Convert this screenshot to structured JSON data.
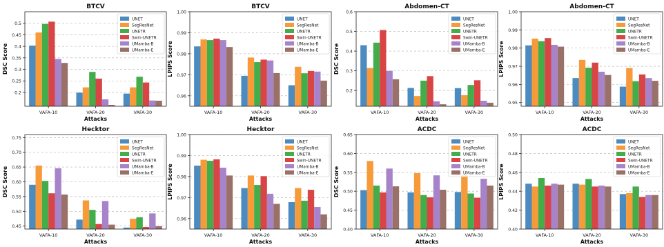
{
  "legend_labels": [
    "UNET",
    "SegResNet",
    "UNETR",
    "Swin-UNETR",
    "UMamba-B",
    "UMamba-E"
  ],
  "series_colors": [
    "#4c8bc0",
    "#f79a3a",
    "#43ad4b",
    "#d94545",
    "#a784c9",
    "#9a7168"
  ],
  "chart_data": [
    {
      "type": "bar",
      "title": "BTCV",
      "xlabel": "Attacks",
      "ylabel": "DSC Score",
      "categories": [
        "VAFA-10",
        "VAFA-20",
        "VAFA-30"
      ],
      "ylim": [
        0.14,
        0.55
      ],
      "yticks": [
        0.2,
        0.25,
        0.3,
        0.35,
        0.4,
        0.45,
        0.5
      ],
      "ytick_labels": [
        "0.2",
        "0.25",
        "0.3",
        "0.35",
        "0.4",
        "0.45",
        "0.5"
      ],
      "grid": true,
      "legend": "top-right",
      "series": [
        {
          "name": "UNET",
          "values": [
            0.403,
            0.199,
            0.195
          ]
        },
        {
          "name": "SegResNet",
          "values": [
            0.46,
            0.222,
            0.222
          ]
        },
        {
          "name": "UNETR",
          "values": [
            0.497,
            0.289,
            0.268
          ]
        },
        {
          "name": "Swin-UNETR",
          "values": [
            0.507,
            0.26,
            0.243
          ]
        },
        {
          "name": "UMamba-B",
          "values": [
            0.345,
            0.17,
            0.165
          ]
        },
        {
          "name": "UMamba-E",
          "values": [
            0.328,
            0.146,
            0.164
          ]
        }
      ]
    },
    {
      "type": "bar",
      "title": "BTCV",
      "xlabel": "Attacks",
      "ylabel": "LPIPS Score",
      "categories": [
        "VAFA-10",
        "VAFA-20",
        "VAFA-30"
      ],
      "ylim": [
        0.955,
        1.0
      ],
      "yticks": [
        0.96,
        0.97,
        0.98,
        0.99,
        1.0
      ],
      "ytick_labels": [
        "0.96",
        "0.97",
        "0.98",
        "0.99",
        "1.00"
      ],
      "grid": true,
      "legend": "top-right",
      "series": [
        {
          "name": "UNET",
          "values": [
            0.9835,
            0.9695,
            0.965
          ]
        },
        {
          "name": "SegResNet",
          "values": [
            0.9868,
            0.9782,
            0.9738
          ]
        },
        {
          "name": "UNETR",
          "values": [
            0.9865,
            0.976,
            0.9707
          ]
        },
        {
          "name": "Swin-UNETR",
          "values": [
            0.9872,
            0.9772,
            0.9718
          ]
        },
        {
          "name": "UMamba-B",
          "values": [
            0.9865,
            0.9768,
            0.9715
          ]
        },
        {
          "name": "UMamba-E",
          "values": [
            0.9832,
            0.9708,
            0.9672
          ]
        }
      ]
    },
    {
      "type": "bar",
      "title": "Abdomen-CT",
      "xlabel": "Attacks",
      "ylabel": "DSC Score",
      "categories": [
        "VAFA-10",
        "VAFA-20",
        "VAFA-30"
      ],
      "ylim": [
        0.12,
        0.6
      ],
      "yticks": [
        0.2,
        0.3,
        0.4,
        0.5,
        0.6
      ],
      "ytick_labels": [
        "0.2",
        "0.3",
        "0.4",
        "0.5",
        "0.6"
      ],
      "grid": true,
      "legend": "top-right",
      "series": [
        {
          "name": "UNET",
          "values": [
            0.43,
            0.213,
            0.212
          ]
        },
        {
          "name": "SegResNet",
          "values": [
            0.314,
            0.172,
            0.176
          ]
        },
        {
          "name": "UNETR",
          "values": [
            0.443,
            0.25,
            0.228
          ]
        },
        {
          "name": "Swin-UNETR",
          "values": [
            0.507,
            0.273,
            0.252
          ]
        },
        {
          "name": "UMamba-B",
          "values": [
            0.3,
            0.145,
            0.148
          ]
        },
        {
          "name": "UMamba-E",
          "values": [
            0.257,
            0.13,
            0.138
          ]
        }
      ]
    },
    {
      "type": "bar",
      "title": "Abdomen-CT",
      "xlabel": "Attacks",
      "ylabel": "LPIPS Score",
      "categories": [
        "VAFA-10",
        "VAFA-20",
        "VAFA-30"
      ],
      "ylim": [
        0.948,
        1.0
      ],
      "yticks": [
        0.95,
        0.96,
        0.97,
        0.98,
        0.99,
        1.0
      ],
      "ytick_labels": [
        "0.95",
        "0.96",
        "0.97",
        "0.98",
        "0.99",
        "1.00"
      ],
      "grid": true,
      "legend": "top-right",
      "series": [
        {
          "name": "UNET",
          "values": [
            0.9815,
            0.9635,
            0.9588
          ]
        },
        {
          "name": "SegResNet",
          "values": [
            0.9852,
            0.9735,
            0.969
          ]
        },
        {
          "name": "UNETR",
          "values": [
            0.9838,
            0.9692,
            0.9618
          ]
        },
        {
          "name": "Swin-UNETR",
          "values": [
            0.9855,
            0.972,
            0.9655
          ]
        },
        {
          "name": "UMamba-B",
          "values": [
            0.9818,
            0.967,
            0.9635
          ]
        },
        {
          "name": "UMamba-E",
          "values": [
            0.9808,
            0.9652,
            0.962
          ]
        }
      ]
    },
    {
      "type": "bar",
      "title": "Hecktor",
      "xlabel": "Attacks",
      "ylabel": "DSC Score",
      "categories": [
        "VAFA-10",
        "VAFA-20",
        "VAFA-30"
      ],
      "ylim": [
        0.44,
        0.76
      ],
      "yticks": [
        0.45,
        0.5,
        0.55,
        0.6,
        0.65,
        0.7,
        0.75
      ],
      "ytick_labels": [
        "0.45",
        "0.50",
        "0.55",
        "0.60",
        "0.65",
        "0.70",
        "0.75"
      ],
      "grid": true,
      "legend": "top-right",
      "series": [
        {
          "name": "UNET",
          "values": [
            0.59,
            0.472,
            0.445
          ]
        },
        {
          "name": "SegResNet",
          "values": [
            0.655,
            0.537,
            0.475
          ]
        },
        {
          "name": "UNETR",
          "values": [
            0.603,
            0.505,
            0.48
          ]
        },
        {
          "name": "Swin-UNETR",
          "values": [
            0.561,
            0.457,
            0.447
          ]
        },
        {
          "name": "UMamba-B",
          "values": [
            0.646,
            0.535,
            0.493
          ]
        },
        {
          "name": "UMamba-E",
          "values": [
            0.557,
            0.455,
            0.45
          ]
        }
      ]
    },
    {
      "type": "bar",
      "title": "Hecktor",
      "xlabel": "Attacks",
      "ylabel": "LPIPS Score",
      "categories": [
        "VAFA-10",
        "VAFA-20",
        "VAFA-30"
      ],
      "ylim": [
        0.955,
        1.0
      ],
      "yticks": [
        0.96,
        0.97,
        0.98,
        0.99,
        1.0
      ],
      "ytick_labels": [
        "0.96",
        "0.97",
        "0.98",
        "0.99",
        "1.00"
      ],
      "grid": true,
      "legend": "top-right",
      "series": [
        {
          "name": "UNET",
          "values": [
            0.9852,
            0.9745,
            0.9678
          ]
        },
        {
          "name": "SegResNet",
          "values": [
            0.988,
            0.9805,
            0.9745
          ]
        },
        {
          "name": "UNETR",
          "values": [
            0.9875,
            0.976,
            0.9685
          ]
        },
        {
          "name": "Swin-UNETR",
          "values": [
            0.9882,
            0.9802,
            0.9737
          ]
        },
        {
          "name": "UMamba-B",
          "values": [
            0.9842,
            0.9718,
            0.9655
          ]
        },
        {
          "name": "UMamba-E",
          "values": [
            0.9805,
            0.967,
            0.962
          ]
        }
      ]
    },
    {
      "type": "bar",
      "title": "ACDC",
      "xlabel": "Attacks",
      "ylabel": "DSC Score",
      "categories": [
        "VAFA-10",
        "VAFA-20",
        "VAFA-30"
      ],
      "ylim": [
        0.4,
        0.65
      ],
      "yticks": [
        0.4,
        0.45,
        0.5,
        0.55,
        0.6,
        0.65
      ],
      "ytick_labels": [
        "0.40",
        "0.45",
        "0.50",
        "0.55",
        "0.60",
        "0.65"
      ],
      "grid": true,
      "legend": "top-right",
      "series": [
        {
          "name": "UNET",
          "values": [
            0.503,
            0.497,
            0.498
          ]
        },
        {
          "name": "SegResNet",
          "values": [
            0.58,
            0.548,
            0.545
          ]
        },
        {
          "name": "UNETR",
          "values": [
            0.515,
            0.49,
            0.494
          ]
        },
        {
          "name": "Swin-UNETR",
          "values": [
            0.497,
            0.484,
            0.483
          ]
        },
        {
          "name": "UMamba-B",
          "values": [
            0.56,
            0.542,
            0.533
          ]
        },
        {
          "name": "UMamba-E",
          "values": [
            0.513,
            0.504,
            0.515
          ]
        }
      ]
    },
    {
      "type": "bar",
      "title": "ACDC",
      "xlabel": "Attacks",
      "ylabel": "LPIPS Score",
      "categories": [
        "VAFA-10",
        "VAFA-20",
        "VAFA-30"
      ],
      "ylim": [
        0.4,
        0.5
      ],
      "yticks": [
        0.4,
        0.42,
        0.44,
        0.46,
        0.48,
        0.5
      ],
      "ytick_labels": [
        "0.40",
        "0.42",
        "0.44",
        "0.46",
        "0.48",
        "0.50"
      ],
      "grid": true,
      "legend": "top-right",
      "series": [
        {
          "name": "UNET",
          "values": [
            0.448,
            0.448,
            0.437
          ]
        },
        {
          "name": "SegResNet",
          "values": [
            0.445,
            0.447,
            0.438
          ]
        },
        {
          "name": "UNETR",
          "values": [
            0.454,
            0.453,
            0.445
          ]
        },
        {
          "name": "Swin-UNETR",
          "values": [
            0.446,
            0.445,
            0.434
          ]
        },
        {
          "name": "UMamba-B",
          "values": [
            0.448,
            0.446,
            0.436
          ]
        },
        {
          "name": "UMamba-E",
          "values": [
            0.447,
            0.445,
            0.436
          ]
        }
      ]
    }
  ]
}
